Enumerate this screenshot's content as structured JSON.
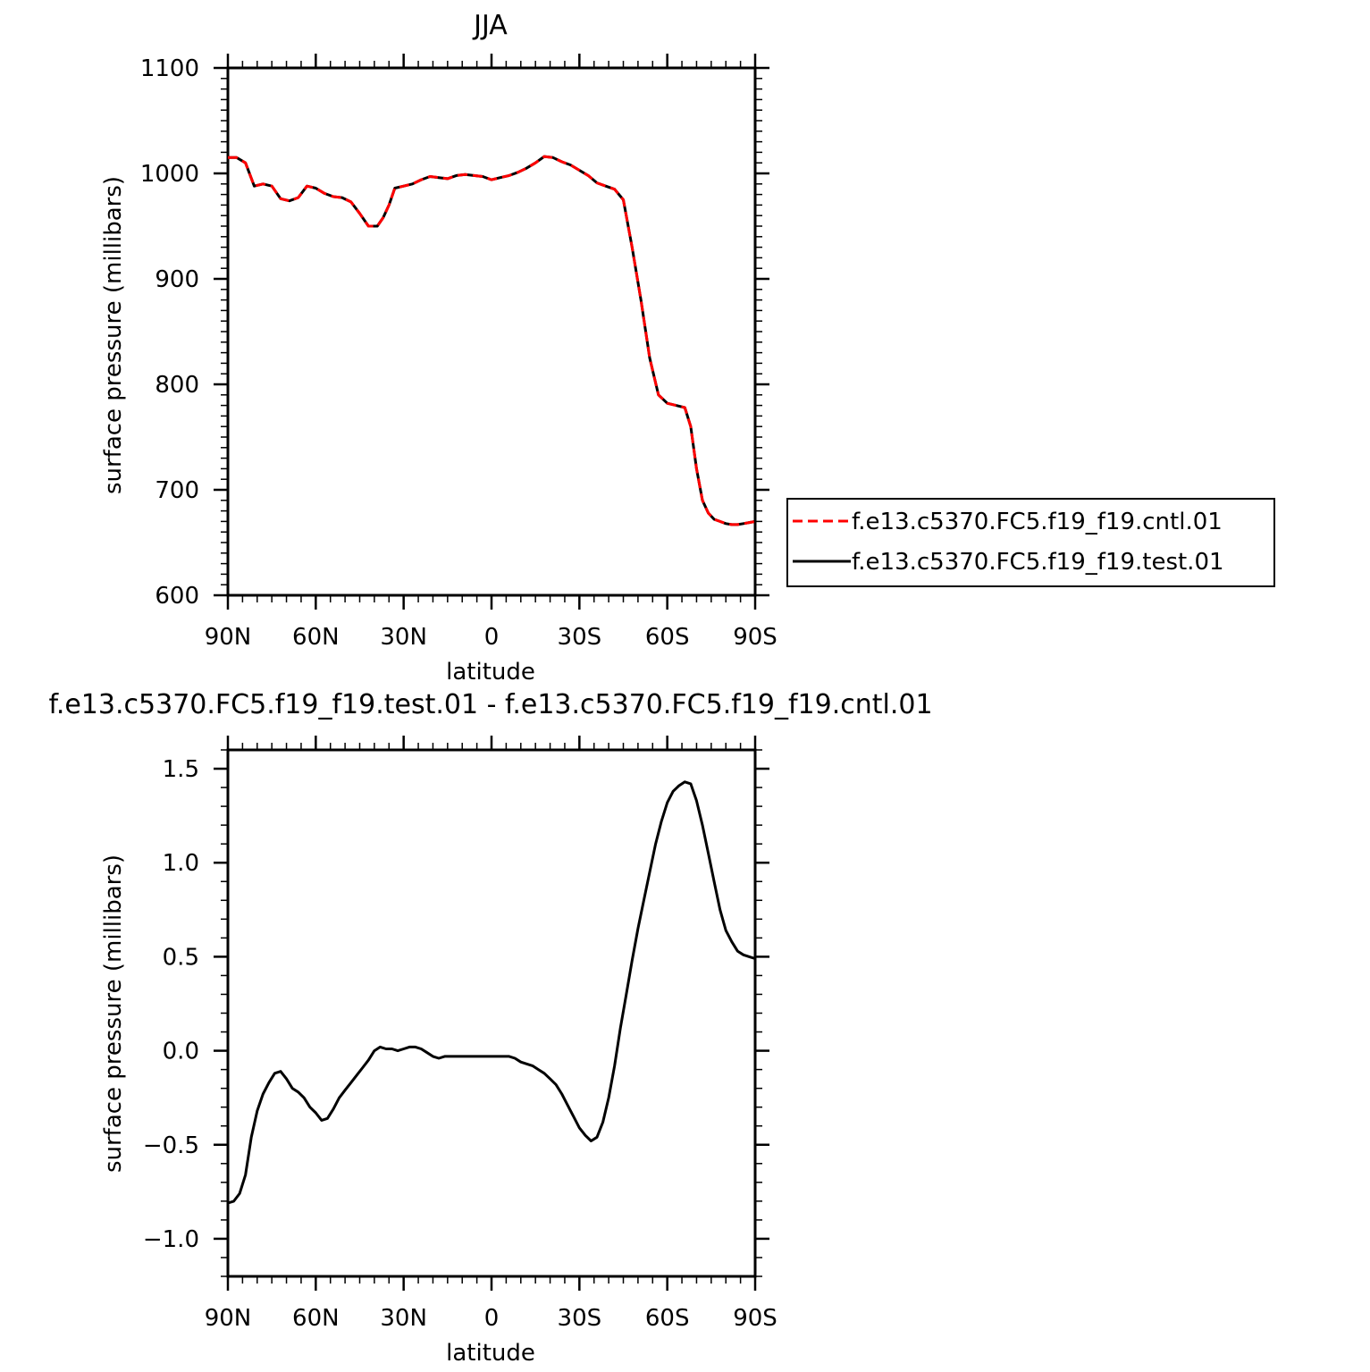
{
  "chart_data": [
    {
      "type": "line",
      "title": "JJA",
      "xlabel": "latitude",
      "ylabel": "surface pressure (millibars)",
      "xlim": [
        90,
        -90
      ],
      "ylim": [
        600,
        1100
      ],
      "xticks": [
        90,
        60,
        30,
        0,
        -30,
        -60,
        -90
      ],
      "xtick_labels": [
        "90N",
        "60N",
        "30N",
        "0",
        "30S",
        "60S",
        "90S"
      ],
      "yticks": [
        600,
        700,
        800,
        900,
        1000,
        1100
      ],
      "ytick_labels": [
        "600",
        "700",
        "800",
        "900",
        "1000",
        "1100"
      ],
      "legend_position": "right",
      "series": [
        {
          "name": "f.e13.c5370.FC5.f19_f19.cntl.01",
          "color": "#ff0000",
          "dash": "dashed",
          "x": [
            90,
            87,
            84,
            81,
            78,
            75,
            72,
            69,
            66,
            63,
            60,
            57,
            54,
            51,
            48,
            45,
            42,
            39,
            37,
            35,
            33,
            30,
            27,
            24,
            21,
            18,
            15,
            12,
            9,
            6,
            3,
            0,
            -3,
            -6,
            -9,
            -12,
            -15,
            -18,
            -21,
            -24,
            -27,
            -30,
            -33,
            -36,
            -39,
            -42,
            -45,
            -48,
            -51,
            -54,
            -57,
            -60,
            -63,
            -66,
            -68,
            -70,
            -72,
            -74,
            -76,
            -78,
            -80,
            -82,
            -84,
            -86,
            -88,
            -90
          ],
          "y": [
            1015,
            1015,
            1010,
            988,
            990,
            988,
            976,
            974,
            977,
            988,
            986,
            981,
            978,
            977,
            973,
            962,
            950,
            950,
            958,
            970,
            986,
            988,
            990,
            994,
            997,
            996,
            995,
            998,
            999,
            998,
            997,
            994,
            996,
            998,
            1001,
            1005,
            1010,
            1016,
            1015,
            1011,
            1008,
            1003,
            998,
            991,
            988,
            985,
            975,
            930,
            880,
            825,
            790,
            782,
            780,
            778,
            760,
            720,
            690,
            678,
            672,
            670,
            668,
            667,
            667,
            668,
            669,
            670
          ]
        },
        {
          "name": "f.e13.c5370.FC5.f19_f19.test.01",
          "color": "#000000",
          "dash": "solid",
          "x": [
            90,
            87,
            84,
            81,
            78,
            75,
            72,
            69,
            66,
            63,
            60,
            57,
            54,
            51,
            48,
            45,
            42,
            39,
            37,
            35,
            33,
            30,
            27,
            24,
            21,
            18,
            15,
            12,
            9,
            6,
            3,
            0,
            -3,
            -6,
            -9,
            -12,
            -15,
            -18,
            -21,
            -24,
            -27,
            -30,
            -33,
            -36,
            -39,
            -42,
            -45,
            -48,
            -51,
            -54,
            -57,
            -60,
            -63,
            -66,
            -68,
            -70,
            -72,
            -74,
            -76,
            -78,
            -80,
            -82,
            -84,
            -86,
            -88,
            -90
          ],
          "y": [
            1015,
            1015,
            1010,
            988,
            990,
            988,
            976,
            974,
            977,
            988,
            986,
            981,
            978,
            977,
            973,
            962,
            950,
            950,
            958,
            970,
            986,
            988,
            990,
            994,
            997,
            996,
            995,
            998,
            999,
            998,
            997,
            994,
            996,
            998,
            1001,
            1005,
            1010,
            1016,
            1015,
            1011,
            1008,
            1003,
            998,
            991,
            988,
            985,
            975,
            930,
            880,
            825,
            790,
            782,
            780,
            778,
            760,
            720,
            690,
            678,
            672,
            670,
            668,
            667,
            667,
            668,
            669,
            670
          ]
        }
      ]
    },
    {
      "type": "line",
      "title": "f.e13.c5370.FC5.f19_f19.test.01 - f.e13.c5370.FC5.f19_f19.cntl.01",
      "xlabel": "latitude",
      "ylabel": "surface pressure (millibars)",
      "xlim": [
        90,
        -90
      ],
      "ylim": [
        -1.2,
        1.6
      ],
      "xticks": [
        90,
        60,
        30,
        0,
        -30,
        -60,
        -90
      ],
      "xtick_labels": [
        "90N",
        "60N",
        "30N",
        "0",
        "30S",
        "60S",
        "90S"
      ],
      "yticks": [
        -1.0,
        -0.5,
        0.0,
        0.5,
        1.0,
        1.5
      ],
      "ytick_labels": [
        "−1.0",
        "−0.5",
        "0.0",
        "0.5",
        "1.0",
        "1.5"
      ],
      "series": [
        {
          "name": "",
          "color": "#000000",
          "x": [
            90,
            88,
            86,
            84,
            82,
            80,
            78,
            76,
            74,
            72,
            70,
            68,
            66,
            64,
            62,
            60,
            58,
            56,
            54,
            52,
            50,
            48,
            46,
            44,
            42,
            40,
            38,
            36,
            34,
            32,
            30,
            28,
            26,
            24,
            22,
            20,
            18,
            16,
            14,
            12,
            10,
            8,
            6,
            4,
            2,
            0,
            -2,
            -4,
            -6,
            -8,
            -10,
            -12,
            -14,
            -16,
            -18,
            -20,
            -22,
            -24,
            -26,
            -28,
            -30,
            -32,
            -34,
            -36,
            -38,
            -40,
            -42,
            -44,
            -46,
            -48,
            -50,
            -52,
            -54,
            -56,
            -58,
            -60,
            -62,
            -64,
            -66,
            -68,
            -70,
            -72,
            -74,
            -76,
            -78,
            -80,
            -82,
            -84,
            -86,
            -88,
            -90
          ],
          "y": [
            -0.81,
            -0.8,
            -0.76,
            -0.66,
            -0.46,
            -0.32,
            -0.23,
            -0.17,
            -0.12,
            -0.11,
            -0.15,
            -0.2,
            -0.22,
            -0.25,
            -0.3,
            -0.33,
            -0.37,
            -0.36,
            -0.31,
            -0.25,
            -0.21,
            -0.17,
            -0.13,
            -0.09,
            -0.05,
            0.0,
            0.02,
            0.01,
            0.01,
            0.0,
            0.01,
            0.02,
            0.02,
            0.01,
            -0.01,
            -0.03,
            -0.04,
            -0.03,
            -0.03,
            -0.03,
            -0.03,
            -0.03,
            -0.03,
            -0.03,
            -0.03,
            -0.03,
            -0.03,
            -0.03,
            -0.03,
            -0.04,
            -0.06,
            -0.07,
            -0.08,
            -0.1,
            -0.12,
            -0.15,
            -0.18,
            -0.23,
            -0.29,
            -0.35,
            -0.41,
            -0.45,
            -0.48,
            -0.46,
            -0.38,
            -0.25,
            -0.08,
            0.12,
            0.3,
            0.48,
            0.65,
            0.8,
            0.95,
            1.1,
            1.22,
            1.32,
            1.38,
            1.41,
            1.43,
            1.42,
            1.33,
            1.2,
            1.05,
            0.9,
            0.75,
            0.64,
            0.58,
            0.53,
            0.51,
            0.5,
            0.49
          ]
        }
      ]
    }
  ]
}
